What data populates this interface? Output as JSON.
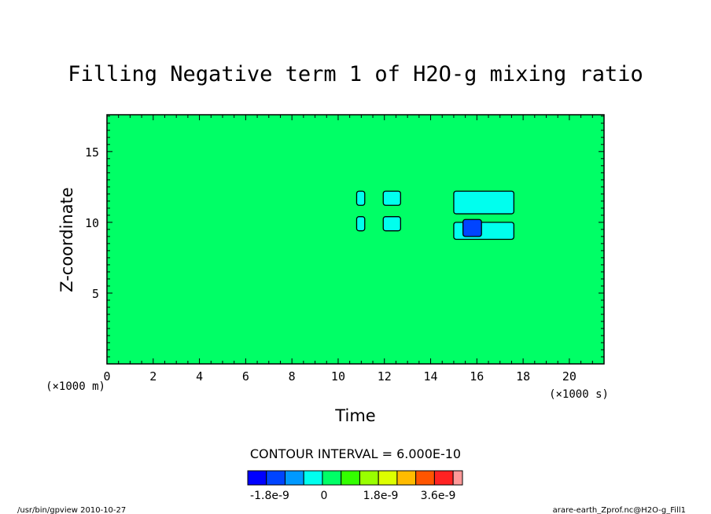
{
  "chart_data": {
    "type": "heatmap",
    "title": "Filling Negative term 1 of H2O-g mixing ratio",
    "xlabel": "Time",
    "ylabel": "Z-coordinate",
    "x_unit": "(×1000 s)",
    "y_unit": "(×1000 m)",
    "xlim": [
      0,
      21.5
    ],
    "ylim": [
      0,
      17.6
    ],
    "x_ticks": [
      0,
      2,
      4,
      6,
      8,
      10,
      12,
      14,
      16,
      18,
      20
    ],
    "y_ticks": [
      5,
      10,
      15
    ],
    "background_value": 0,
    "background_color": "#00ff66",
    "contour_interval_text": "CONTOUR INTERVAL = 6.000E-10",
    "colorbar": {
      "colors": [
        "#0000ff",
        "#0044ff",
        "#0099ff",
        "#00ffee",
        "#00ff66",
        "#33ff00",
        "#99ff00",
        "#ddff00",
        "#ffbb00",
        "#ff5500",
        "#ff2222",
        "#ff9999"
      ],
      "labels": [
        "-1.8e-9",
        "0",
        "1.8e-9",
        "3.6e-9"
      ]
    },
    "regions": [
      {
        "level": "negative",
        "color": "#00ffee",
        "x": [
          10.8,
          11.15
        ],
        "z": [
          11.2,
          12.2
        ]
      },
      {
        "level": "negative",
        "color": "#00ffee",
        "x": [
          10.8,
          11.15
        ],
        "z": [
          9.4,
          10.4
        ]
      },
      {
        "level": "negative",
        "color": "#00ffee",
        "x": [
          11.95,
          12.7
        ],
        "z": [
          11.2,
          12.2
        ]
      },
      {
        "level": "negative",
        "color": "#00ffee",
        "x": [
          11.95,
          12.7
        ],
        "z": [
          9.4,
          10.4
        ]
      },
      {
        "level": "negative",
        "color": "#00ffee",
        "x": [
          15.0,
          17.6
        ],
        "z": [
          10.6,
          12.2
        ]
      },
      {
        "level": "negative",
        "color": "#00ffee",
        "x": [
          15.0,
          17.6
        ],
        "z": [
          8.8,
          10.0
        ]
      },
      {
        "level": "minimum",
        "color": "#0044ff",
        "x": [
          15.4,
          16.2
        ],
        "z": [
          9.0,
          10.2
        ]
      }
    ]
  },
  "footer": {
    "left": "/usr/bin/gpview  2010-10-27",
    "right": "arare-earth_Zprof.nc@H2O-g_Fill1"
  }
}
